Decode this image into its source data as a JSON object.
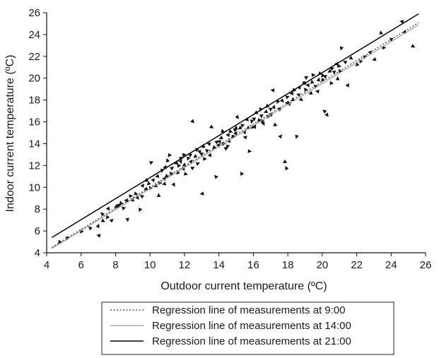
{
  "chart_data": {
    "type": "scatter",
    "xlabel": "Outdoor current temperature (ºC)",
    "ylabel": "Indoor current temperature (ºC)",
    "xlim": [
      4,
      26
    ],
    "ylim": [
      4,
      26
    ],
    "x_ticks": [
      4,
      6,
      8,
      10,
      12,
      14,
      16,
      18,
      20,
      22,
      24,
      26
    ],
    "y_ticks": [
      4,
      6,
      8,
      10,
      12,
      14,
      16,
      18,
      20,
      22,
      24,
      26
    ],
    "grid": false,
    "legend_position": "bottom",
    "scatter_points": [
      [
        4.8,
        5.0
      ],
      [
        5.2,
        5.3
      ],
      [
        7.0,
        5.6
      ],
      [
        7.0,
        6.5
      ],
      [
        7.3,
        6.9
      ],
      [
        7.5,
        7.2
      ],
      [
        7.2,
        7.6
      ],
      [
        7.8,
        7.0
      ],
      [
        7.6,
        8.0
      ],
      [
        8.0,
        8.2
      ],
      [
        8.3,
        8.6
      ],
      [
        8.5,
        8.1
      ],
      [
        8.7,
        7.0
      ],
      [
        8.6,
        8.8
      ],
      [
        9.0,
        8.9
      ],
      [
        9.2,
        9.4
      ],
      [
        9.4,
        7.9
      ],
      [
        9.5,
        9.2
      ],
      [
        9.6,
        10.2
      ],
      [
        9.8,
        9.8
      ],
      [
        9.9,
        10.3
      ],
      [
        10.0,
        10.0
      ],
      [
        10.1,
        12.3
      ],
      [
        10.2,
        10.6
      ],
      [
        10.4,
        11.0
      ],
      [
        10.5,
        9.3
      ],
      [
        10.6,
        10.4
      ],
      [
        10.7,
        11.5
      ],
      [
        10.8,
        10.8
      ],
      [
        10.9,
        11.9
      ],
      [
        11.0,
        11.0
      ],
      [
        11.1,
        12.9
      ],
      [
        11.2,
        11.3
      ],
      [
        11.3,
        11.8
      ],
      [
        11.4,
        10.2
      ],
      [
        11.5,
        12.2
      ],
      [
        11.6,
        11.4
      ],
      [
        11.7,
        12.0
      ],
      [
        11.8,
        12.6
      ],
      [
        11.9,
        11.7
      ],
      [
        12.0,
        12.1
      ],
      [
        12.1,
        11.2
      ],
      [
        12.2,
        12.6
      ],
      [
        12.3,
        13.0
      ],
      [
        12.4,
        12.4
      ],
      [
        12.5,
        16.0
      ],
      [
        12.6,
        12.8
      ],
      [
        12.7,
        13.5
      ],
      [
        12.8,
        12.2
      ],
      [
        12.9,
        13.2
      ],
      [
        13.0,
        9.4
      ],
      [
        13.1,
        13.8
      ],
      [
        13.2,
        12.6
      ],
      [
        13.3,
        13.3
      ],
      [
        13.4,
        14.0
      ],
      [
        13.5,
        13.0
      ],
      [
        13.6,
        15.5
      ],
      [
        13.7,
        13.6
      ],
      [
        13.8,
        11.0
      ],
      [
        13.9,
        14.2
      ],
      [
        14.0,
        13.8
      ],
      [
        14.1,
        14.5
      ],
      [
        14.2,
        15.2
      ],
      [
        14.3,
        14.0
      ],
      [
        14.4,
        13.5
      ],
      [
        14.5,
        14.8
      ],
      [
        14.6,
        14.3
      ],
      [
        14.7,
        15.1
      ],
      [
        14.8,
        14.6
      ],
      [
        14.9,
        15.3
      ],
      [
        15.0,
        15.0
      ],
      [
        15.1,
        16.4
      ],
      [
        15.2,
        15.4
      ],
      [
        15.3,
        11.3
      ],
      [
        15.4,
        15.7
      ],
      [
        15.5,
        15.0
      ],
      [
        15.6,
        16.2
      ],
      [
        15.7,
        15.5
      ],
      [
        15.8,
        13.3
      ],
      [
        15.9,
        16.0
      ],
      [
        16.0,
        16.3
      ],
      [
        16.1,
        15.6
      ],
      [
        16.2,
        16.8
      ],
      [
        16.3,
        16.1
      ],
      [
        16.4,
        17.2
      ],
      [
        16.5,
        16.6
      ],
      [
        16.6,
        15.8
      ],
      [
        16.7,
        16.9
      ],
      [
        16.8,
        17.5
      ],
      [
        16.9,
        16.5
      ],
      [
        17.0,
        17.1
      ],
      [
        17.1,
        18.9
      ],
      [
        17.2,
        17.4
      ],
      [
        17.3,
        15.7
      ],
      [
        17.4,
        17.8
      ],
      [
        17.5,
        17.2
      ],
      [
        17.6,
        14.7
      ],
      [
        17.7,
        17.9
      ],
      [
        17.8,
        12.3
      ],
      [
        17.9,
        11.8
      ],
      [
        18.0,
        18.3
      ],
      [
        18.1,
        17.6
      ],
      [
        18.2,
        18.6
      ],
      [
        18.3,
        18.1
      ],
      [
        18.4,
        18.9
      ],
      [
        18.5,
        14.6
      ],
      [
        18.6,
        18.5
      ],
      [
        18.7,
        19.2
      ],
      [
        18.8,
        18.0
      ],
      [
        18.9,
        19.5
      ],
      [
        19.0,
        19.0
      ],
      [
        19.1,
        20.1
      ],
      [
        19.2,
        19.3
      ],
      [
        19.3,
        18.6
      ],
      [
        19.4,
        19.7
      ],
      [
        19.5,
        20.3
      ],
      [
        19.6,
        19.2
      ],
      [
        19.7,
        18.8
      ],
      [
        19.8,
        19.9
      ],
      [
        19.9,
        20.4
      ],
      [
        20.0,
        19.8
      ],
      [
        20.1,
        17.0
      ],
      [
        20.2,
        20.2
      ],
      [
        20.3,
        16.6
      ],
      [
        20.4,
        20.6
      ],
      [
        20.5,
        19.6
      ],
      [
        20.6,
        20.9
      ],
      [
        20.7,
        20.5
      ],
      [
        20.8,
        21.3
      ],
      [
        20.9,
        20.0
      ],
      [
        21.0,
        21.1
      ],
      [
        21.1,
        22.7
      ],
      [
        21.3,
        21.5
      ],
      [
        21.5,
        19.4
      ],
      [
        21.7,
        21.8
      ],
      [
        22.0,
        21.2
      ],
      [
        22.2,
        21.6
      ],
      [
        22.5,
        22.0
      ],
      [
        22.8,
        22.3
      ],
      [
        23.0,
        21.7
      ],
      [
        23.4,
        24.2
      ],
      [
        23.6,
        22.8
      ],
      [
        24.0,
        23.5
      ],
      [
        24.6,
        25.2
      ],
      [
        24.8,
        24.3
      ],
      [
        25.3,
        22.9
      ],
      [
        6.0,
        5.9
      ],
      [
        6.5,
        6.3
      ],
      [
        8.2,
        8.4
      ],
      [
        9.3,
        9.0
      ],
      [
        10.3,
        10.1
      ],
      [
        11.0,
        12.5
      ],
      [
        12.0,
        13.0
      ],
      [
        13.0,
        13.0
      ],
      [
        14.0,
        14.2
      ],
      [
        15.0,
        15.5
      ],
      [
        16.0,
        15.5
      ],
      [
        16.5,
        16.0
      ],
      [
        17.0,
        16.7
      ],
      [
        18.0,
        17.8
      ],
      [
        19.0,
        19.5
      ],
      [
        20.0,
        20.2
      ],
      [
        21.0,
        20.7
      ],
      [
        12.5,
        11.8
      ],
      [
        11.8,
        12.3
      ],
      [
        10.8,
        10.3
      ],
      [
        9.8,
        10.7
      ],
      [
        8.9,
        9.2
      ],
      [
        14.5,
        13.7
      ],
      [
        15.5,
        14.6
      ]
    ],
    "series": [
      {
        "name": "Regression line of measurements at 9:00",
        "style": "dotted",
        "color": "#333333",
        "x": [
          4.3,
          25.6
        ],
        "y": [
          4.5,
          25.1
        ]
      },
      {
        "name": "Regression line of measurements at 14:00",
        "style": "solid",
        "color": "#9a9a9a",
        "x": [
          4.3,
          25.6
        ],
        "y": [
          4.4,
          24.9
        ]
      },
      {
        "name": "Regression line of measurements at 21:00",
        "style": "solid",
        "color": "#000000",
        "x": [
          4.3,
          25.6
        ],
        "y": [
          5.4,
          25.9
        ]
      }
    ]
  }
}
